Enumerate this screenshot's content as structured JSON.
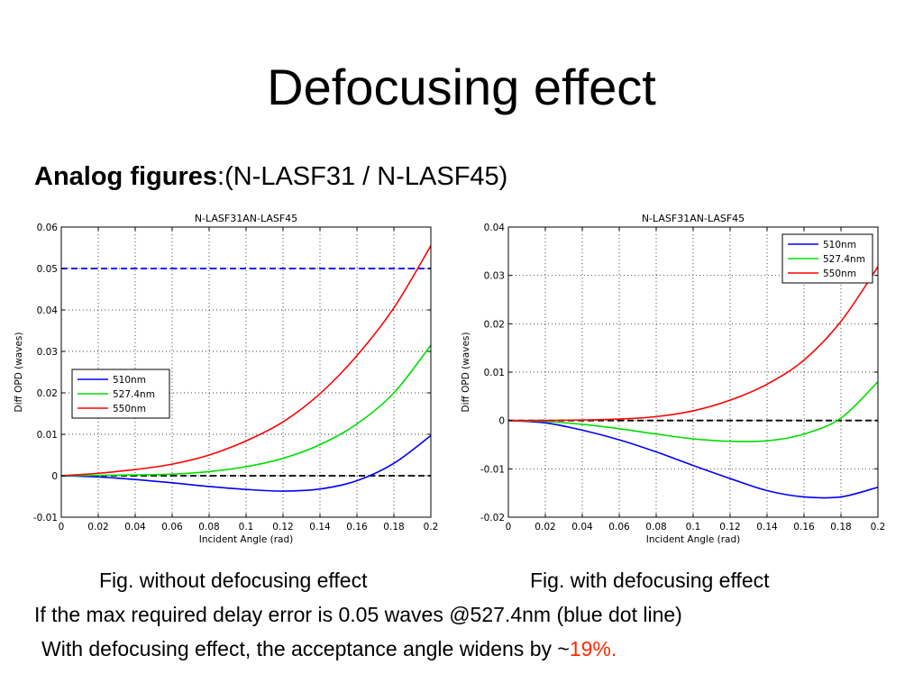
{
  "slide": {
    "title": "Defocusing effect",
    "subtitle_bold": "Analog figures",
    "subtitle_rest": ":(N-LASF31 / N-LASF45)",
    "caption_left": "Fig. without defocusing effect",
    "caption_right": "Fig. with defocusing effect",
    "note_line1": "If the max required delay error is 0.05 waves @527.4nm (blue dot line)",
    "note_line2_prefix": "With defocusing effect,  the acceptance angle widens by ~",
    "note_line2_highlight": "19%.",
    "highlight_color": "#ff2a00"
  },
  "chart_data": [
    {
      "type": "line",
      "title": "N-LASF31AN-LASF45",
      "xlabel": "Incident Angle (rad)",
      "ylabel": "Diff OPD (waves)",
      "xlim": [
        0,
        0.2
      ],
      "ylim": [
        -0.01,
        0.06
      ],
      "xticks": [
        0,
        0.02,
        0.04,
        0.06,
        0.08,
        0.1,
        0.12,
        0.14,
        0.16,
        0.18,
        0.2
      ],
      "xtick_labels": [
        "0",
        "0.02",
        "0.04",
        "0.06",
        "0.08",
        "0.1",
        "0.12",
        "0.14",
        "0.16",
        "0.18",
        "0.2"
      ],
      "yticks": [
        -0.01,
        0,
        0.01,
        0.02,
        0.03,
        0.04,
        0.05,
        0.06
      ],
      "ytick_labels": [
        "-0.01",
        "0",
        "0.01",
        "0.02",
        "0.03",
        "0.04",
        "0.05",
        "0.06"
      ],
      "grid": true,
      "legend_position": "center-left",
      "x": [
        0,
        0.02,
        0.04,
        0.06,
        0.08,
        0.1,
        0.12,
        0.14,
        0.16,
        0.18,
        0.2
      ],
      "series": [
        {
          "name": "510nm",
          "color": "#0000ff",
          "values": [
            0,
            -0.0003,
            -0.0009,
            -0.0017,
            -0.0026,
            -0.0033,
            -0.0037,
            -0.0032,
            -0.0012,
            0.003,
            0.0097
          ]
        },
        {
          "name": "527.4nm",
          "color": "#00dd00",
          "values": [
            0,
            0.0001,
            0.0002,
            0.0004,
            0.001,
            0.0022,
            0.0042,
            0.0075,
            0.0125,
            0.02,
            0.0315
          ]
        },
        {
          "name": "550nm",
          "color": "#ff0000",
          "values": [
            0,
            0.0006,
            0.0015,
            0.0028,
            0.005,
            0.0084,
            0.013,
            0.0198,
            0.029,
            0.0405,
            0.0555
          ]
        }
      ],
      "reference_lines": [
        {
          "y": 0.05,
          "style": "dashed",
          "color": "#0000ff"
        },
        {
          "y": 0,
          "style": "dashed",
          "color": "#000000"
        }
      ]
    },
    {
      "type": "line",
      "title": "N-LASF31AN-LASF45",
      "xlabel": "Incident Angle (rad)",
      "ylabel": "Diff OPD (waves)",
      "xlim": [
        0,
        0.2
      ],
      "ylim": [
        -0.02,
        0.04
      ],
      "xticks": [
        0,
        0.02,
        0.04,
        0.06,
        0.08,
        0.1,
        0.12,
        0.14,
        0.16,
        0.18,
        0.2
      ],
      "xtick_labels": [
        "0",
        "0.02",
        "0.04",
        "0.06",
        "0.08",
        "0.1",
        "0.12",
        "0.14",
        "0.16",
        "0.18",
        "0.2"
      ],
      "yticks": [
        -0.02,
        -0.01,
        0,
        0.01,
        0.02,
        0.03,
        0.04
      ],
      "ytick_labels": [
        "-0.02",
        "-0.01",
        "0",
        "0.01",
        "0.02",
        "0.03",
        "0.04"
      ],
      "grid": true,
      "legend_position": "top-right",
      "x": [
        0,
        0.02,
        0.04,
        0.06,
        0.08,
        0.1,
        0.12,
        0.14,
        0.16,
        0.18,
        0.2
      ],
      "series": [
        {
          "name": "510nm",
          "color": "#0000ff",
          "values": [
            0,
            -0.0005,
            -0.002,
            -0.004,
            -0.0065,
            -0.0093,
            -0.012,
            -0.0145,
            -0.0158,
            -0.0158,
            -0.0138
          ]
        },
        {
          "name": "527.4nm",
          "color": "#00dd00",
          "values": [
            0,
            -0.0002,
            -0.0008,
            -0.0017,
            -0.0028,
            -0.0038,
            -0.0043,
            -0.0042,
            -0.0028,
            0.0005,
            0.008
          ]
        },
        {
          "name": "550nm",
          "color": "#ff0000",
          "values": [
            0,
            0.0,
            0.0001,
            0.0003,
            0.0008,
            0.002,
            0.0042,
            0.0075,
            0.0125,
            0.0205,
            0.0318
          ]
        }
      ],
      "reference_lines": [
        {
          "y": 0,
          "style": "dashed",
          "color": "#000000"
        }
      ]
    }
  ]
}
